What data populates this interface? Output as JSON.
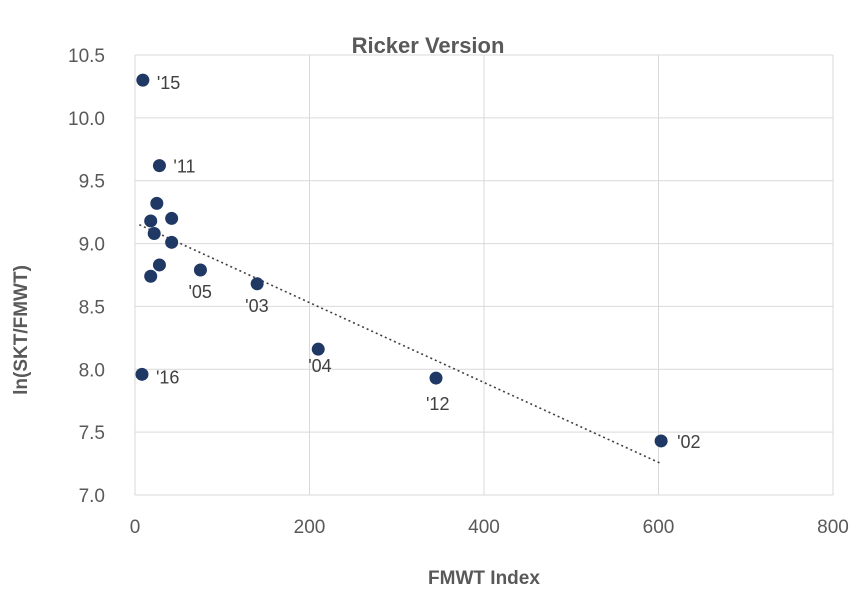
{
  "chart_data": {
    "type": "scatter",
    "title": "Ricker Version",
    "xlabel": "FMWT Index",
    "ylabel": "ln(SKT/FMWT)",
    "xlim": [
      0,
      800
    ],
    "ylim": [
      7.0,
      10.5
    ],
    "xticks": [
      0,
      200,
      400,
      600,
      800
    ],
    "yticks": [
      7.0,
      7.5,
      8.0,
      8.5,
      9.0,
      9.5,
      10.0,
      10.5
    ],
    "xtick_labels": [
      "0",
      "200",
      "400",
      "600",
      "800"
    ],
    "ytick_labels": [
      "7.0",
      "7.5",
      "8.0",
      "8.5",
      "9.0",
      "9.5",
      "10.0",
      "10.5"
    ],
    "grid": true,
    "marker_color": "#1f3864",
    "trendline": {
      "style": "dotted",
      "color": "#404040",
      "x": [
        5,
        603
      ],
      "y": [
        9.15,
        7.25
      ]
    },
    "points": [
      {
        "x": 9,
        "y": 10.3,
        "label": "'15"
      },
      {
        "x": 28,
        "y": 9.62,
        "label": "'11"
      },
      {
        "x": 25,
        "y": 9.32,
        "label": ""
      },
      {
        "x": 18,
        "y": 9.18,
        "label": ""
      },
      {
        "x": 42,
        "y": 9.2,
        "label": ""
      },
      {
        "x": 22,
        "y": 9.08,
        "label": ""
      },
      {
        "x": 42,
        "y": 9.01,
        "label": ""
      },
      {
        "x": 28,
        "y": 8.83,
        "label": ""
      },
      {
        "x": 18,
        "y": 8.74,
        "label": ""
      },
      {
        "x": 75,
        "y": 8.79,
        "label": "'05"
      },
      {
        "x": 140,
        "y": 8.68,
        "label": "'03"
      },
      {
        "x": 210,
        "y": 8.16,
        "label": "'04"
      },
      {
        "x": 345,
        "y": 7.93,
        "label": "'12"
      },
      {
        "x": 8,
        "y": 7.96,
        "label": "'16"
      },
      {
        "x": 603,
        "y": 7.43,
        "label": "'02"
      }
    ]
  }
}
